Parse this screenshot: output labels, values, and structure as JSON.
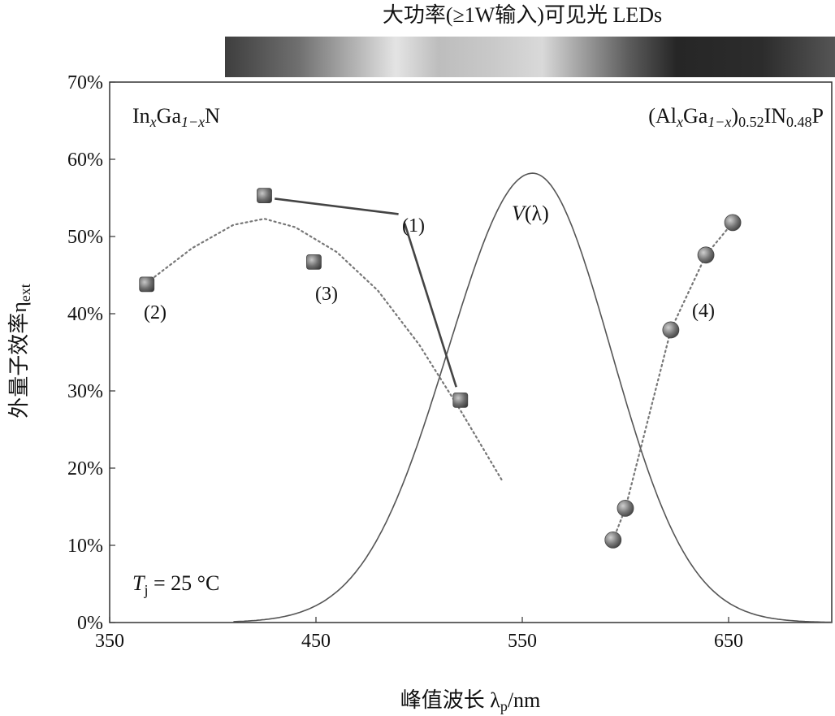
{
  "chart_data": {
    "type": "scatter",
    "title": "大功率(≥1W输入)可见光 LEDs",
    "xlabel": "峰值波长 λ",
    "xlabel_sub": "p",
    "xlabel_unit": "/nm",
    "ylabel": "外量子效率η",
    "ylabel_sub": "ext",
    "xlim": [
      350,
      700
    ],
    "ylim": [
      0,
      70
    ],
    "x_ticks": [
      "350",
      "450",
      "550",
      "650"
    ],
    "x_tick_values": [
      350,
      450,
      550,
      650
    ],
    "y_ticks": [
      "0%",
      "10%",
      "20%",
      "30%",
      "40%",
      "50%",
      "60%",
      "70%"
    ],
    "y_tick_values": [
      0,
      10,
      20,
      30,
      40,
      50,
      60,
      70
    ],
    "grid": false,
    "annotations": {
      "ingan": {
        "p1": "In",
        "s1": "x",
        "p2": "Ga",
        "s2": "1−x",
        "p3": "N"
      },
      "algainp": {
        "p1": "(Al",
        "s1": "x",
        "p2": "Ga",
        "s2": "1−x",
        "p3": ")",
        "s3": "0.52",
        "p4": "IN",
        "s4": "0.48",
        "p5": "P"
      },
      "temp": {
        "p1": "T",
        "s1": "j",
        "p2": " = 25 °C"
      },
      "vlambda": {
        "p1": "V",
        "p2": "(λ)"
      },
      "label1": "(1)",
      "label2": "(2)",
      "label3": "(3)",
      "label4": "(4)"
    },
    "series": [
      {
        "marker": "square",
        "x": [
          368,
          425,
          449,
          520
        ],
        "y": [
          43.8,
          55.3,
          46.7,
          28.8
        ]
      },
      {
        "marker": "circle",
        "x": [
          594,
          600,
          622,
          639,
          652
        ],
        "y": [
          10.7,
          14.8,
          37.9,
          47.6,
          51.8
        ]
      }
    ],
    "trend_2": {
      "style": "dotted",
      "x": [
        368,
        390,
        410,
        425,
        440,
        460,
        480,
        500,
        520,
        540
      ],
      "y": [
        44.0,
        48.5,
        51.5,
        52.3,
        51.2,
        48.0,
        43.0,
        36.0,
        27.5,
        18.5
      ]
    },
    "trend_4": {
      "style": "dotted",
      "x": [
        594,
        600,
        622,
        639,
        652
      ],
      "y": [
        10.7,
        14.8,
        37.9,
        47.6,
        51.8
      ]
    },
    "line_1": {
      "style": "solid",
      "x": [
        430,
        490,
        493,
        518
      ],
      "y": [
        54.9,
        52.9,
        51.7,
        30.5
      ]
    },
    "v_lambda": {
      "style": "solid",
      "peak_x": 555,
      "peak_y": 58.2,
      "x_start": 410,
      "x_end": 700
    }
  }
}
